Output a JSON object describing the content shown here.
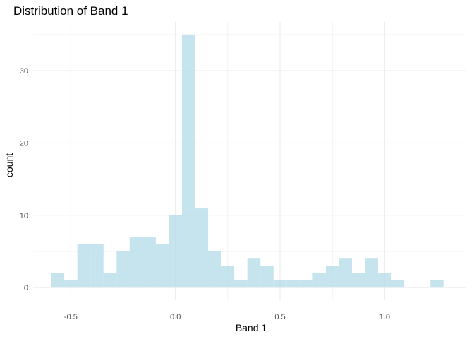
{
  "chart_data": {
    "type": "bar",
    "title": "Distribution of Band 1",
    "xlabel": "Band 1",
    "ylabel": "count",
    "bin_width": 0.0625,
    "bins": [
      {
        "x": -0.5625,
        "count": 2
      },
      {
        "x": -0.5,
        "count": 1
      },
      {
        "x": -0.4375,
        "count": 6
      },
      {
        "x": -0.375,
        "count": 6
      },
      {
        "x": -0.3125,
        "count": 2
      },
      {
        "x": -0.25,
        "count": 5
      },
      {
        "x": -0.1875,
        "count": 7
      },
      {
        "x": -0.125,
        "count": 7
      },
      {
        "x": -0.0625,
        "count": 6
      },
      {
        "x": 0.0,
        "count": 10
      },
      {
        "x": 0.0625,
        "count": 35
      },
      {
        "x": 0.125,
        "count": 11
      },
      {
        "x": 0.1875,
        "count": 5
      },
      {
        "x": 0.25,
        "count": 3
      },
      {
        "x": 0.3125,
        "count": 1
      },
      {
        "x": 0.375,
        "count": 4
      },
      {
        "x": 0.4375,
        "count": 3
      },
      {
        "x": 0.5,
        "count": 1
      },
      {
        "x": 0.5625,
        "count": 1
      },
      {
        "x": 0.625,
        "count": 1
      },
      {
        "x": 0.6875,
        "count": 2
      },
      {
        "x": 0.75,
        "count": 3
      },
      {
        "x": 0.8125,
        "count": 4
      },
      {
        "x": 0.875,
        "count": 2
      },
      {
        "x": 0.9375,
        "count": 4
      },
      {
        "x": 1.0,
        "count": 2
      },
      {
        "x": 1.0625,
        "count": 1
      },
      {
        "x": 1.125,
        "count": 0
      },
      {
        "x": 1.1875,
        "count": 0
      },
      {
        "x": 1.25,
        "count": 1
      }
    ],
    "x_ticks": [
      "-0.5",
      "0.0",
      "0.5",
      "1.0"
    ],
    "y_ticks": [
      "0",
      "10",
      "20",
      "30"
    ],
    "xlim": [
      -0.68,
      1.39
    ],
    "ylim": [
      -1.75,
      36.75
    ],
    "grid": true,
    "legend": "none",
    "fill_color": "#ADD8E6",
    "fill_opacity": 0.7,
    "grid_color": "#ebebeb"
  }
}
